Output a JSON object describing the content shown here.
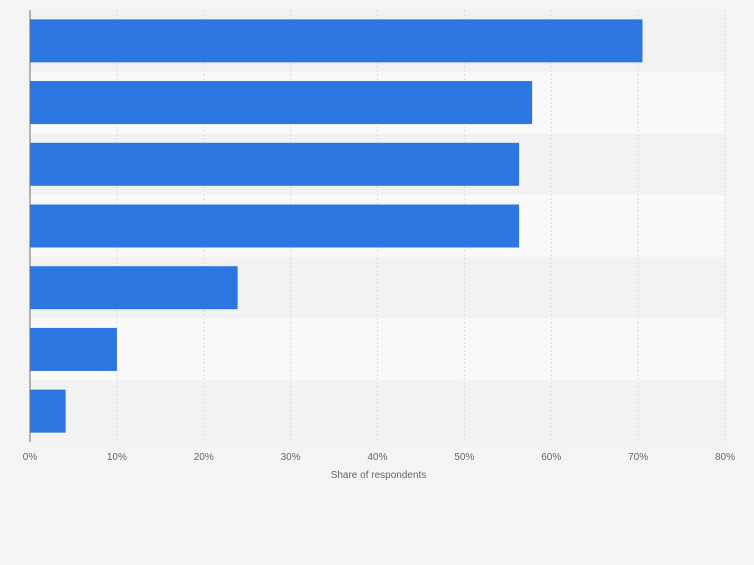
{
  "chart_data": {
    "type": "bar",
    "orientation": "horizontal",
    "categories": [
      "",
      "",
      "",
      "",
      "",
      "",
      ""
    ],
    "values": [
      70.5,
      57.8,
      56.3,
      56.3,
      23.9,
      10.0,
      4.1
    ],
    "xlabel": "Share of respondents",
    "ylabel": "",
    "xlim": [
      0,
      80
    ],
    "tick_values": [
      0,
      10,
      20,
      30,
      40,
      50,
      60,
      70,
      80
    ],
    "tick_labels": [
      "0%",
      "10%",
      "20%",
      "30%",
      "40%",
      "50%",
      "60%",
      "70%",
      "80%"
    ],
    "grid": true,
    "colors": {
      "bar": "#2b76e1",
      "band_light": "#f9f9f9",
      "band_dark": "#f2f2f2",
      "grid": "#dedede",
      "axis": "#6e6e6e",
      "text": "#666666"
    }
  }
}
